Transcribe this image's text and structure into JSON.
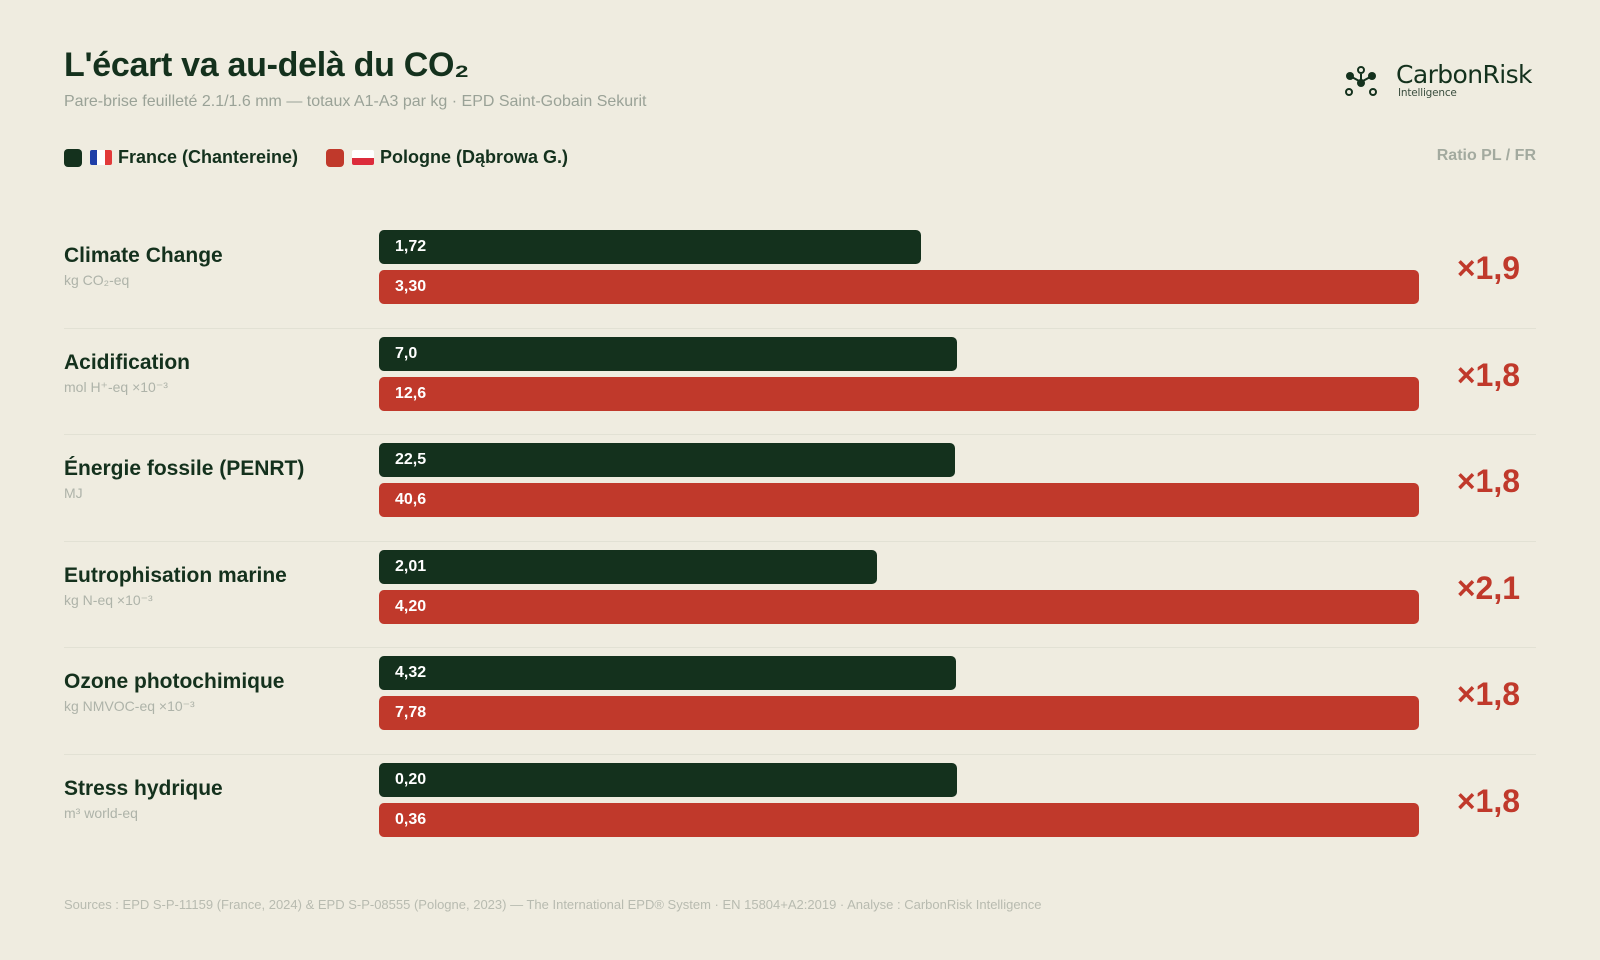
{
  "header": {
    "title": "L'écart va au-delà du CO₂",
    "subtitle": "Pare-brise feuilleté 2.1/1.6 mm — totaux A1-A3 par kg · EPD Saint-Gobain Sekurit"
  },
  "logo": {
    "name": "CarbonRisk",
    "tagline": "Intelligence",
    "icon": "molecule-network-icon"
  },
  "legend": {
    "items": [
      {
        "label": "France (Chantereine)",
        "color": "#14311d",
        "flag": "flag-france-icon"
      },
      {
        "label": "Pologne (Dąbrowa G.)",
        "color": "#c0392b",
        "flag": "flag-poland-icon"
      }
    ],
    "ratio_header": "Ratio PL / FR"
  },
  "colors": {
    "france": "#14311d",
    "pologne": "#c0392b",
    "background": "#efece0"
  },
  "chart_data": {
    "type": "bar",
    "orientation": "horizontal",
    "title": "L'écart va au-delà du CO₂",
    "subtitle": "Pare-brise feuilleté 2.1/1.6 mm — totaux A1-A3 par kg · EPD Saint-Gobain Sekurit",
    "scaling": "each category normalized to the Pologne value",
    "categories": [
      {
        "label": "Climate Change",
        "unit": "kg CO₂-eq"
      },
      {
        "label": "Acidification",
        "unit": "mol H⁺-eq ×10⁻³"
      },
      {
        "label": "Énergie fossile (PENRT)",
        "unit": "MJ"
      },
      {
        "label": "Eutrophisation marine",
        "unit": "kg N-eq ×10⁻³"
      },
      {
        "label": "Ozone photochimique",
        "unit": "kg NMVOC-eq ×10⁻³"
      },
      {
        "label": "Stress hydrique",
        "unit": "m³ world-eq"
      }
    ],
    "series": [
      {
        "name": "France (Chantereine)",
        "values": [
          1.72,
          7.0,
          22.5,
          2.01,
          4.32,
          0.2
        ],
        "labels": [
          "1,72",
          "7,0",
          "22,5",
          "2,01",
          "4,32",
          "0,20"
        ]
      },
      {
        "name": "Pologne (Dąbrowa G.)",
        "values": [
          3.3,
          12.6,
          40.6,
          4.2,
          7.78,
          0.36
        ],
        "labels": [
          "3,30",
          "12,6",
          "40,6",
          "4,20",
          "7,78",
          "0,36"
        ]
      }
    ],
    "ratios": [
      "×1,9",
      "×1,8",
      "×1,8",
      "×2,1",
      "×1,8",
      "×1,8"
    ],
    "legend_position": "top-left",
    "grid": false
  },
  "footer": {
    "sources": "Sources : EPD S-P-11159 (France, 2024) & EPD S-P-08555 (Pologne, 2023) — The International EPD® System · EN 15804+A2:2019 · Analyse : CarbonRisk Intelligence"
  }
}
